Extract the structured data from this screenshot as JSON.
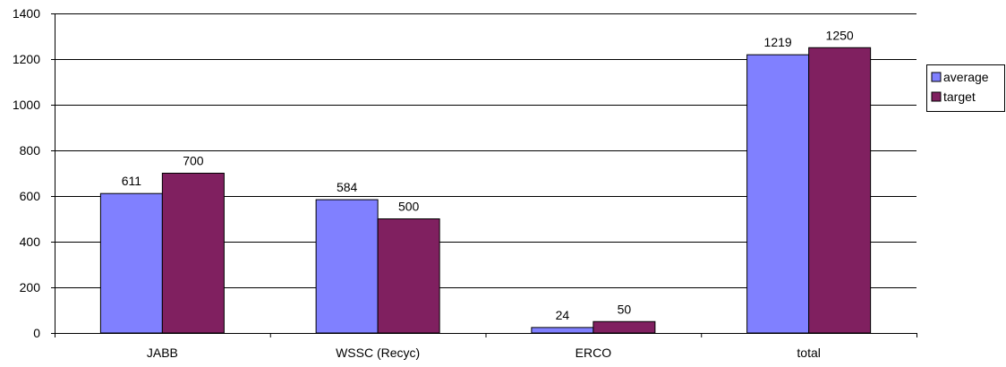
{
  "chart_data": {
    "type": "bar",
    "title": "",
    "xlabel": "",
    "ylabel": "",
    "categories": [
      "JABB",
      "WSSC (Recyc)",
      "ERCO",
      "total"
    ],
    "series": [
      {
        "name": "average",
        "values": [
          611,
          584,
          24,
          1219
        ],
        "color": "#8080FF"
      },
      {
        "name": "target",
        "values": [
          700,
          500,
          50,
          1250
        ],
        "color": "#802060"
      }
    ],
    "ylim": [
      0,
      1400
    ],
    "yticks": [
      0,
      200,
      400,
      600,
      800,
      1000,
      1200,
      1400
    ],
    "grid": true,
    "data_labels": true,
    "legend_position": "right"
  }
}
